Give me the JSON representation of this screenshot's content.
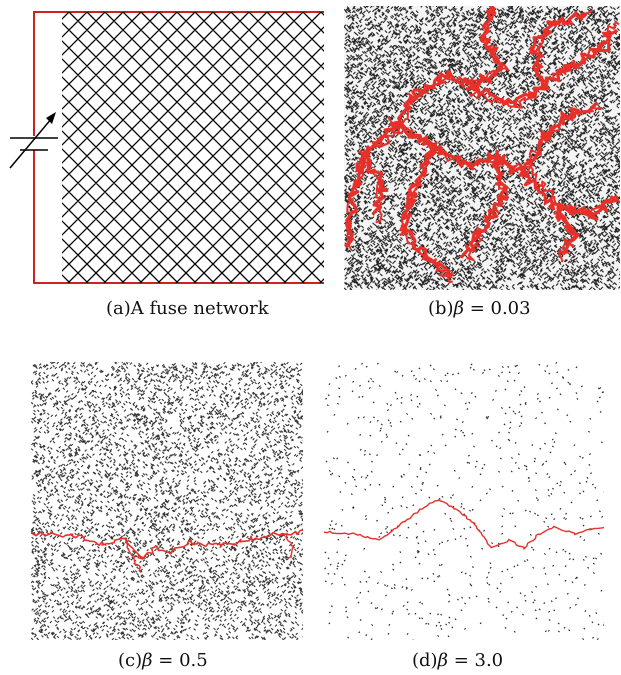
{
  "figure": {
    "panels": [
      {
        "id": "a",
        "caption": "(a)A fuse network"
      },
      {
        "id": "b",
        "caption_prefix": "(b)",
        "caption_symbol": "β",
        "caption_value": " = 0.03"
      },
      {
        "id": "c",
        "caption_prefix": "(c)",
        "caption_symbol": "β",
        "caption_value": " = 0.5"
      },
      {
        "id": "d",
        "caption_prefix": "(d)",
        "caption_symbol": "β",
        "caption_value": " = 3.0"
      }
    ],
    "colors": {
      "network": "#000000",
      "crack": "#e8302a",
      "wire": "#d22020"
    }
  }
}
